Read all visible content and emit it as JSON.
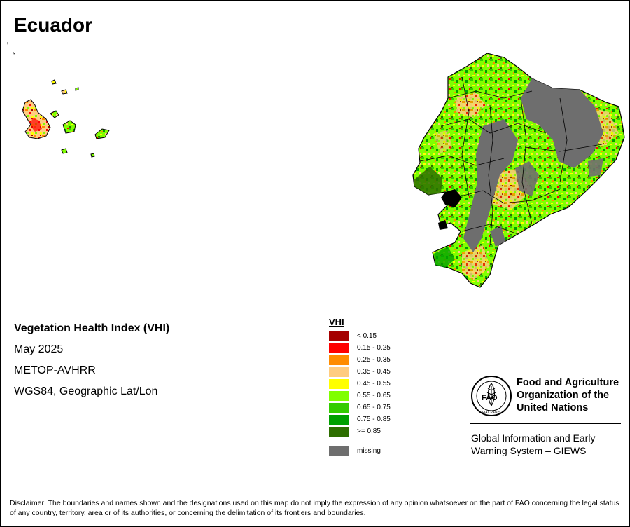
{
  "map_title": "Ecuador",
  "info": {
    "product": "Vegetation Health Index (VHI)",
    "period": "May 2025",
    "sensor": "METOP-AVHRR",
    "projection": "WGS84, Geographic Lat/Lon"
  },
  "legend": {
    "title": "VHI",
    "items": [
      {
        "label": "< 0.15",
        "color": "#a50000"
      },
      {
        "label": "0.15 - 0.25",
        "color": "#ff0000"
      },
      {
        "label": "0.25 - 0.35",
        "color": "#ff8c00"
      },
      {
        "label": "0.35 - 0.45",
        "color": "#ffcc80"
      },
      {
        "label": "0.45 - 0.55",
        "color": "#ffff00"
      },
      {
        "label": "0.55 - 0.65",
        "color": "#80ff00"
      },
      {
        "label": "0.65 - 0.75",
        "color": "#33cc00"
      },
      {
        "label": "0.75 - 0.85",
        "color": "#00a000"
      },
      {
        "label": ">= 0.85",
        "color": "#2d6e00"
      }
    ],
    "missing": {
      "label": "missing",
      "color": "#6e6e6e"
    }
  },
  "org": {
    "logo_letters": "FAO",
    "logo_motto": "FIAT PANIS",
    "name_lines": [
      "Food and Agriculture",
      "Organization of the",
      "United Nations"
    ],
    "system_lines": [
      "Global Information and Early",
      "Warning System – GIEWS"
    ]
  },
  "disclaimer": "Disclaimer: The boundaries and names shown and the designations used on this map do not imply the expression of any opinion whatsoever on the part of FAO concerning the legal status of any country, territory, area or of its authorities, or concerning the delimitation of its frontiers and boundaries."
}
